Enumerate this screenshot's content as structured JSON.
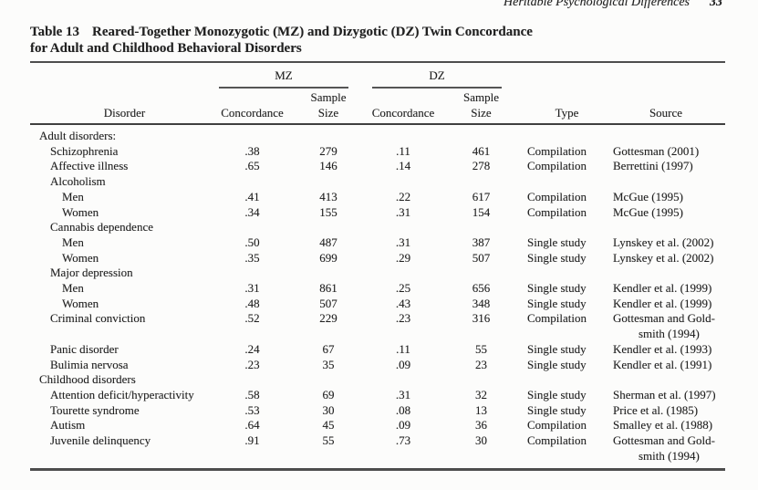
{
  "running_head": {
    "title": "Heritable Psychological Differences",
    "page_number": "33"
  },
  "table": {
    "label": "Table 13",
    "title_line1": "Reared-Together Monozygotic (MZ) and Dizygotic (DZ) Twin Concordance",
    "title_line2": "for Adult and Childhood Behavioral Disorders",
    "headers": {
      "disorder": "Disorder",
      "mz": "MZ",
      "dz": "DZ",
      "concordance": "Concordance",
      "sample": "Sample",
      "size": "Size",
      "type": "Type",
      "source": "Source"
    },
    "rows": [
      {
        "indent": 0,
        "label": "Adult disorders:"
      },
      {
        "indent": 1,
        "label": "Schizophrenia",
        "mz_c": ".38",
        "mz_n": "279",
        "dz_c": ".11",
        "dz_n": "461",
        "type": "Compilation",
        "source": "Gottesman (2001)"
      },
      {
        "indent": 1,
        "label": "Affective illness",
        "mz_c": ".65",
        "mz_n": "146",
        "dz_c": ".14",
        "dz_n": "278",
        "type": "Compilation",
        "source": "Berrettini (1997)"
      },
      {
        "indent": 1,
        "label": "Alcoholism"
      },
      {
        "indent": 2,
        "label": "Men",
        "mz_c": ".41",
        "mz_n": "413",
        "dz_c": ".22",
        "dz_n": "617",
        "type": "Compilation",
        "source": "McGue (1995)"
      },
      {
        "indent": 2,
        "label": "Women",
        "mz_c": ".34",
        "mz_n": "155",
        "dz_c": ".31",
        "dz_n": "154",
        "type": "Compilation",
        "source": "McGue (1995)"
      },
      {
        "indent": 1,
        "label": "Cannabis dependence"
      },
      {
        "indent": 2,
        "label": "Men",
        "mz_c": ".50",
        "mz_n": "487",
        "dz_c": ".31",
        "dz_n": "387",
        "type": "Single study",
        "source": "Lynskey et al. (2002)"
      },
      {
        "indent": 2,
        "label": "Women",
        "mz_c": ".35",
        "mz_n": "699",
        "dz_c": ".29",
        "dz_n": "507",
        "type": "Single study",
        "source": "Lynskey et al. (2002)"
      },
      {
        "indent": 1,
        "label": "Major depression"
      },
      {
        "indent": 2,
        "label": "Men",
        "mz_c": ".31",
        "mz_n": "861",
        "dz_c": ".25",
        "dz_n": "656",
        "type": "Single study",
        "source": "Kendler et al. (1999)"
      },
      {
        "indent": 2,
        "label": "Women",
        "mz_c": ".48",
        "mz_n": "507",
        "dz_c": ".43",
        "dz_n": "348",
        "type": "Single study",
        "source": "Kendler et al. (1999)"
      },
      {
        "indent": 1,
        "label": "Criminal conviction",
        "mz_c": ".52",
        "mz_n": "229",
        "dz_c": ".23",
        "dz_n": "316",
        "type": "Compilation",
        "source": "Gottesman and Gold-",
        "source2": "smith (1994)"
      },
      {
        "indent": 1,
        "label": "Panic disorder",
        "mz_c": ".24",
        "mz_n": "67",
        "dz_c": ".11",
        "dz_n": "55",
        "type": "Single study",
        "source": "Kendler et al. (1993)"
      },
      {
        "indent": 1,
        "label": "Bulimia nervosa",
        "mz_c": ".23",
        "mz_n": "35",
        "dz_c": ".09",
        "dz_n": "23",
        "type": "Single study",
        "source": "Kendler et al. (1991)"
      },
      {
        "indent": 0,
        "label": "Childhood disorders"
      },
      {
        "indent": 1,
        "label": "Attention deficit/hyperactivity",
        "mz_c": ".58",
        "mz_n": "69",
        "dz_c": ".31",
        "dz_n": "32",
        "type": "Single study",
        "source": "Sherman et al. (1997)"
      },
      {
        "indent": 1,
        "label": "Tourette syndrome",
        "mz_c": ".53",
        "mz_n": "30",
        "dz_c": ".08",
        "dz_n": "13",
        "type": "Single study",
        "source": "Price et al. (1985)"
      },
      {
        "indent": 1,
        "label": "Autism",
        "mz_c": ".64",
        "mz_n": "45",
        "dz_c": ".09",
        "dz_n": "36",
        "type": "Compilation",
        "source": "Smalley et al. (1988)"
      },
      {
        "indent": 1,
        "label": "Juvenile delinquency",
        "mz_c": ".91",
        "mz_n": "55",
        "dz_c": ".73",
        "dz_n": "30",
        "type": "Compilation",
        "source": "Gottesman and Gold-",
        "source2": "smith (1994)"
      }
    ]
  },
  "colors": {
    "background": "#fcfcfb",
    "text": "#212121",
    "rule": "#4d4d4d"
  }
}
